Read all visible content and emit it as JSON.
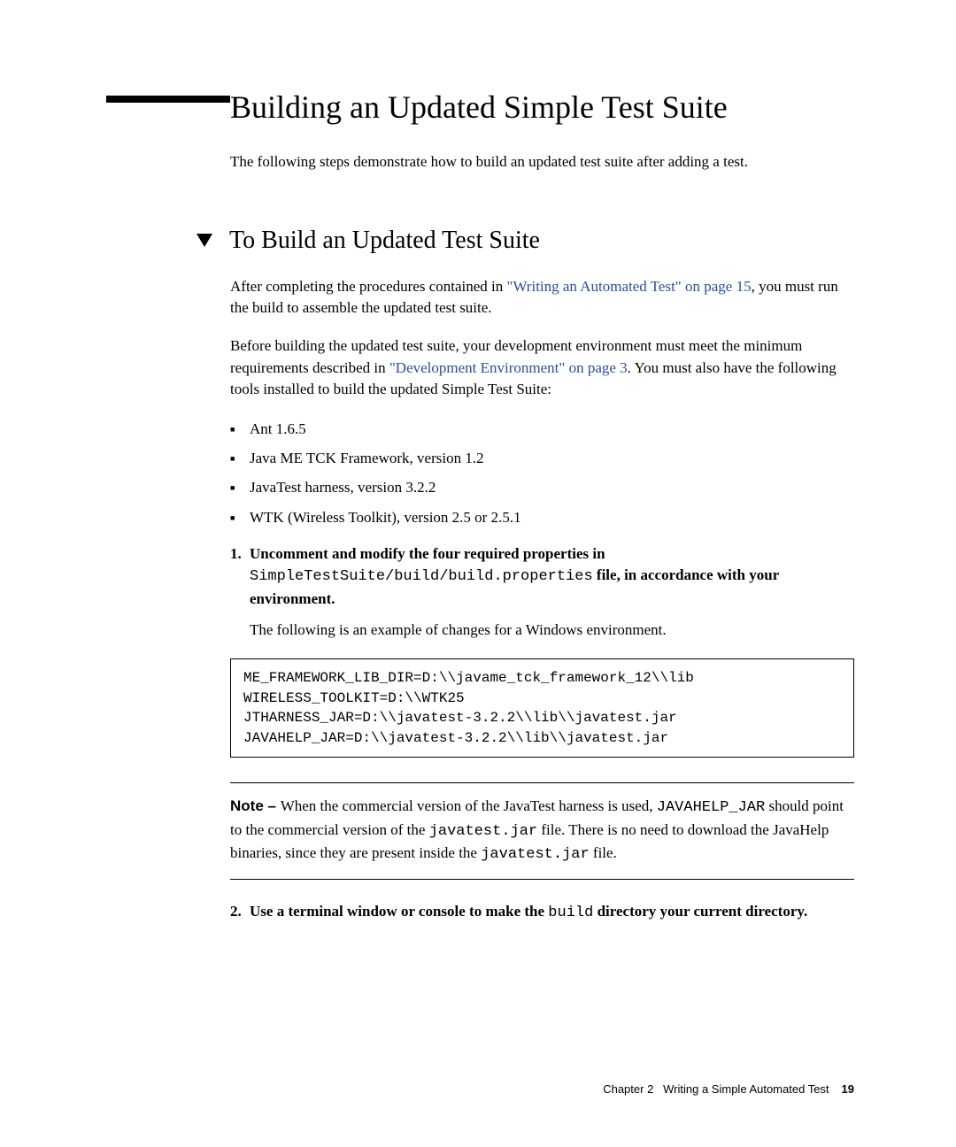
{
  "heading1": "Building an Updated Simple Test Suite",
  "intro": "The following steps demonstrate how to build an updated test suite after adding a test.",
  "heading2": "To Build an Updated Test Suite",
  "para1_part1": "After completing the procedures contained in ",
  "para1_link": "\"Writing an Automated Test\" on page 15",
  "para1_part2": ", you must run the build to assemble the updated test suite.",
  "para2_part1": "Before building the updated test suite, your development environment must meet the minimum requirements described in ",
  "para2_link": "\"Development Environment\" on page 3",
  "para2_part2": ". You must also have the following tools installed to build the updated Simple Test Suite:",
  "bullets": {
    "b0": "Ant 1.6.5",
    "b1": "Java ME TCK Framework, version 1.2",
    "b2": "JavaTest harness, version 3.2.2",
    "b3": "WTK (Wireless Toolkit), version 2.5 or 2.5.1"
  },
  "step1": {
    "num": "1.",
    "bold1": "Uncomment and modify the four required properties in ",
    "code1": "SimpleTestSuite/build/build.properties",
    "bold2": " file, in accordance with your environment.",
    "follow": "The following is an example of changes for a Windows environment."
  },
  "codeblock": {
    "l0": "ME_FRAMEWORK_LIB_DIR=D:\\\\javame_tck_framework_12\\\\lib",
    "l1": "WIRELESS_TOOLKIT=D:\\\\WTK25",
    "l2": "JTHARNESS_JAR=D:\\\\javatest-3.2.2\\\\lib\\\\javatest.jar",
    "l3": "JAVAHELP_JAR=D:\\\\javatest-3.2.2\\\\lib\\\\javatest.jar"
  },
  "note": {
    "label": "Note – ",
    "t1": "When the commercial version of the JavaTest harness is used, ",
    "c1": "JAVAHELP_JAR",
    "t2": " should point to the commercial version of the ",
    "c2": "javatest.jar",
    "t3": " file. There is no need to download the JavaHelp binaries, since they are present inside the ",
    "c3": "javatest.jar",
    "t4": " file."
  },
  "step2": {
    "num": "2.",
    "bold1": "Use a terminal window or console to make the ",
    "code1": "build",
    "bold2": " directory your current directory."
  },
  "footer": {
    "chapter": "Chapter 2",
    "title": "Writing a Simple Automated Test",
    "page": "19"
  }
}
